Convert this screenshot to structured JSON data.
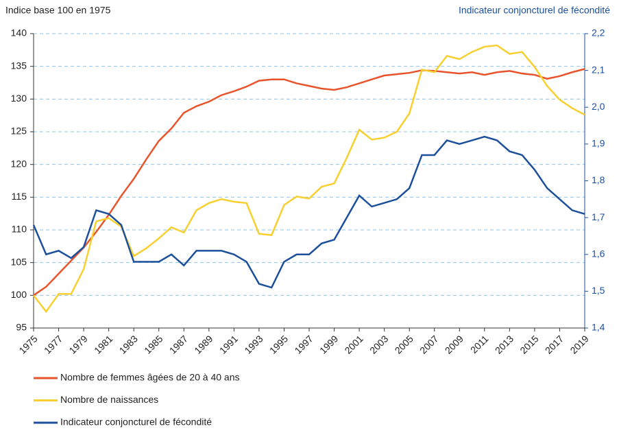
{
  "chart_data": {
    "type": "line",
    "y_label": "Indice base 100 en 1975",
    "y2_label": "Indicateur conjoncturel de fécondité",
    "x": [
      1975,
      1976,
      1977,
      1978,
      1979,
      1980,
      1981,
      1982,
      1983,
      1984,
      1985,
      1986,
      1987,
      1988,
      1989,
      1990,
      1991,
      1992,
      1993,
      1994,
      1995,
      1996,
      1997,
      1998,
      1999,
      2000,
      2001,
      2002,
      2003,
      2004,
      2005,
      2006,
      2007,
      2008,
      2009,
      2010,
      2011,
      2012,
      2013,
      2014,
      2015,
      2016,
      2017,
      2018,
      2019
    ],
    "xlim": [
      1975,
      2019
    ],
    "xticks": [
      1975,
      1977,
      1979,
      1981,
      1983,
      1985,
      1987,
      1989,
      1991,
      1993,
      1995,
      1997,
      1999,
      2001,
      2003,
      2005,
      2007,
      2009,
      2011,
      2013,
      2015,
      2017,
      2019
    ],
    "ylim": [
      95,
      140
    ],
    "yticks": [
      95,
      100,
      105,
      110,
      115,
      120,
      125,
      130,
      135,
      140
    ],
    "y2lim": [
      1.4,
      2.2
    ],
    "y2ticks": [
      {
        "value": 1.4,
        "label": "1,4"
      },
      {
        "value": 1.5,
        "label": "1,5"
      },
      {
        "value": 1.6,
        "label": "1,6"
      },
      {
        "value": 1.7,
        "label": "1,7"
      },
      {
        "value": 1.8,
        "label": "1,8"
      },
      {
        "value": 1.9,
        "label": "1,9"
      },
      {
        "value": 2.0,
        "label": "2,0"
      },
      {
        "value": 2.1,
        "label": "2,1"
      },
      {
        "value": 2.2,
        "label": "2,2"
      }
    ],
    "grid": true,
    "series": [
      {
        "name": "Nombre de femmes âgées de 20 à 40 ans",
        "color": "#e8532b",
        "values": [
          100,
          101.3,
          103.3,
          105.3,
          107.3,
          109.7,
          112.3,
          115.2,
          117.8,
          120.8,
          123.6,
          125.5,
          127.9,
          128.9,
          129.6,
          130.6,
          131.2,
          131.9,
          132.8,
          133,
          133,
          132.4,
          132,
          131.6,
          131.4,
          131.8,
          132.4,
          133,
          133.6,
          133.8,
          134,
          134.4,
          134.3,
          134.1,
          133.9,
          134.1,
          133.7,
          134.1,
          134.3,
          133.9,
          133.7,
          133.1,
          133.5,
          134.1,
          134.6
        ]
      },
      {
        "name": "Nombre de naissances",
        "color": "#f7cf2e",
        "values": [
          100,
          97.5,
          100.2,
          100.2,
          104,
          111.3,
          111.8,
          110.5,
          106,
          107.2,
          108.7,
          110.4,
          109.6,
          113,
          114.1,
          114.7,
          114.3,
          114.1,
          109.4,
          109.2,
          113.8,
          115.1,
          114.8,
          116.6,
          117.1,
          121,
          125.3,
          123.8,
          124.1,
          125,
          127.8,
          134.5,
          134.1,
          136.6,
          136.1,
          137.2,
          138,
          138.2,
          136.9,
          137.2,
          134.9,
          132,
          129.9,
          128.6,
          127.6
        ]
      },
      {
        "name": "Indicateur conjoncturel de fécondité",
        "color": "#1c4f9c",
        "axis": "y2",
        "values": [
          1.68,
          1.6,
          1.61,
          1.59,
          1.62,
          1.72,
          1.71,
          1.68,
          1.58,
          1.58,
          1.58,
          1.6,
          1.57,
          1.61,
          1.61,
          1.61,
          1.6,
          1.58,
          1.52,
          1.51,
          1.58,
          1.6,
          1.6,
          1.63,
          1.64,
          1.7,
          1.76,
          1.73,
          1.74,
          1.75,
          1.78,
          1.87,
          1.87,
          1.91,
          1.9,
          1.91,
          1.92,
          1.91,
          1.88,
          1.87,
          1.83,
          1.78,
          1.75,
          1.72,
          1.71
        ]
      }
    ]
  }
}
